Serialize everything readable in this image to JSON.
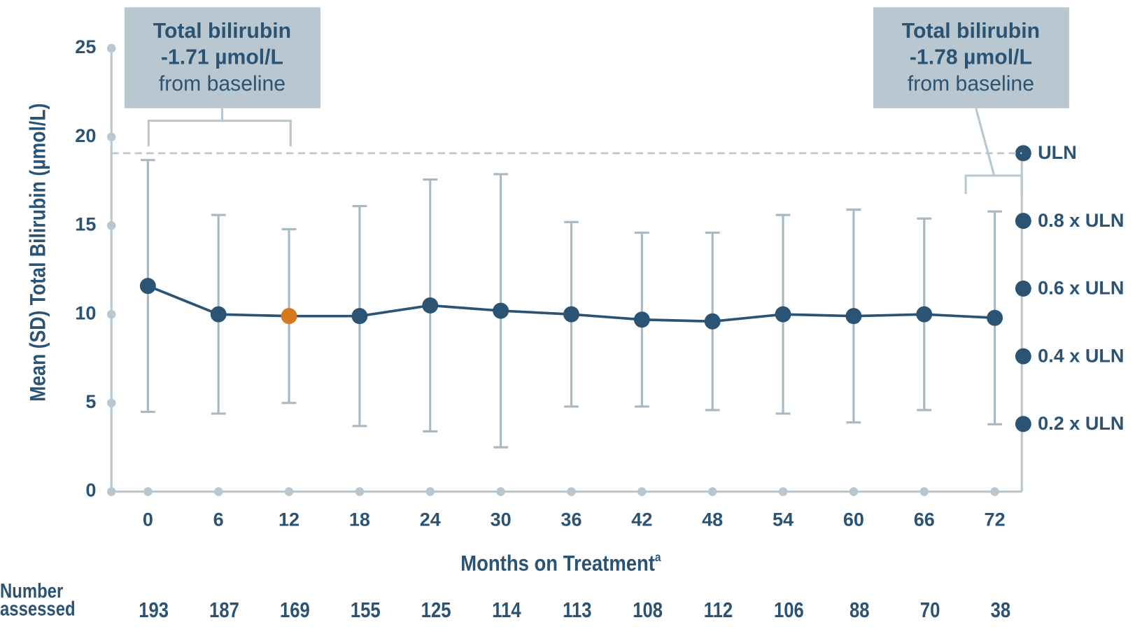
{
  "chart_data": {
    "type": "line",
    "y_label": "Mean (SD) Total Bilirubin (µmol/L)",
    "x_label": "Months on Treatment",
    "x_label_superscript": "a",
    "x": [
      0,
      6,
      12,
      18,
      24,
      30,
      36,
      42,
      48,
      54,
      60,
      66,
      72
    ],
    "series": [
      {
        "name": "Mean (SD) total bilirubin",
        "color": "#2b5374",
        "error_color": "#a9b9c4",
        "values": [
          11.6,
          10.0,
          9.9,
          9.9,
          10.5,
          10.2,
          10.0,
          9.7,
          9.6,
          10.0,
          9.9,
          10.0,
          9.8
        ],
        "errors": [
          7.1,
          5.6,
          4.9,
          6.2,
          7.1,
          7.7,
          5.2,
          4.9,
          5.0,
          5.6,
          6.0,
          5.4,
          6.0
        ]
      }
    ],
    "highlight_x": 12,
    "highlight_color": "#d4791c",
    "xlim": [
      -3.1,
      74.3
    ],
    "xticks": [
      0,
      6,
      12,
      18,
      24,
      30,
      36,
      42,
      48,
      54,
      60,
      66,
      72
    ],
    "ylim": [
      0,
      25
    ],
    "yticks": [
      0,
      5,
      10,
      15,
      20,
      25
    ],
    "y2lim": [
      0,
      1.31
    ],
    "y2ticks": [
      {
        "value": 0.2,
        "label": "0.2 x ULN"
      },
      {
        "value": 0.4,
        "label": "0.4 x ULN"
      },
      {
        "value": 0.6,
        "label": "0.6 x ULN"
      },
      {
        "value": 0.8,
        "label": "0.8 x ULN"
      },
      {
        "value": 1,
        "label": "ULN"
      }
    ],
    "annotations": [
      {
        "lines": [
          "Total bilirubin",
          "-1.71 µmol/L",
          "from baseline"
        ]
      },
      {
        "lines": [
          "Total bilirubin",
          "-1.78 µmol/L",
          "from baseline"
        ]
      }
    ],
    "table": {
      "label": "Number assessed",
      "values": [
        193,
        187,
        169,
        155,
        125,
        114,
        113,
        108,
        112,
        106,
        88,
        70,
        38
      ]
    }
  }
}
